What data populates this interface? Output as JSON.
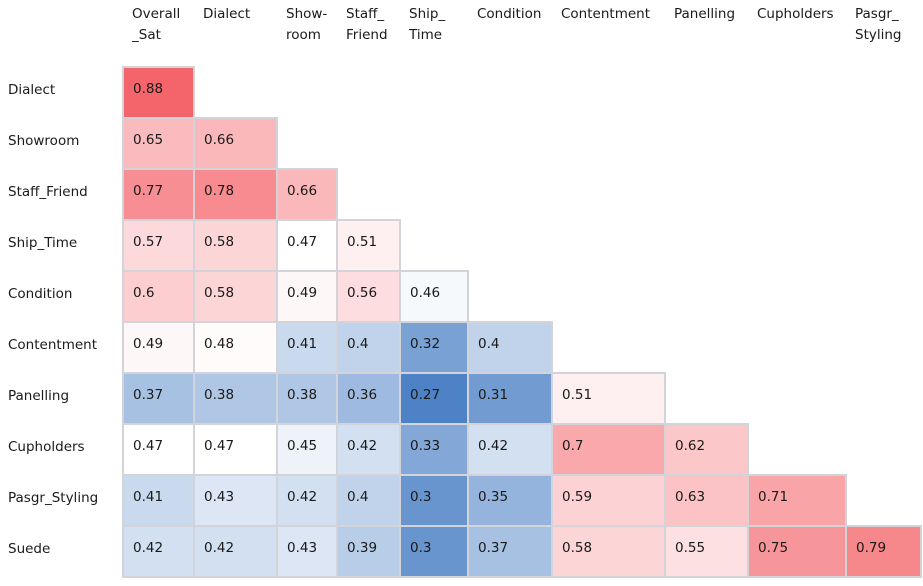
{
  "chart_data": {
    "type": "heatmap",
    "title": "",
    "shape": "lower-triangle",
    "legend": false,
    "col_labels": [
      "Overall_Sat",
      "Dialect",
      "Showroom",
      "Staff_Friend",
      "Ship_Time",
      "Condition",
      "Contentment",
      "Panelling",
      "Cupholders",
      "Pasgr_Styling"
    ],
    "col_header_lines": [
      [
        "Overall",
        "_Sat"
      ],
      [
        "Dialect"
      ],
      [
        "Show-",
        "room"
      ],
      [
        "Staff_",
        "Friend"
      ],
      [
        "Ship_",
        "Time"
      ],
      [
        "Condition"
      ],
      [
        "Contentment"
      ],
      [
        "Panelling"
      ],
      [
        "Cupholders"
      ],
      [
        "Pasgr_",
        "Styling"
      ]
    ],
    "row_labels": [
      "Dialect",
      "Showroom",
      "Staff_Friend",
      "Ship_Time",
      "Condition",
      "Contentment",
      "Panelling",
      "Cupholders",
      "Pasgr_Styling",
      "Suede"
    ],
    "values": [
      [
        0.88
      ],
      [
        0.65,
        0.66
      ],
      [
        0.77,
        0.78,
        0.66
      ],
      [
        0.57,
        0.58,
        0.47,
        0.51
      ],
      [
        0.6,
        0.58,
        0.49,
        0.56,
        0.46
      ],
      [
        0.49,
        0.48,
        0.41,
        0.4,
        0.32,
        0.4
      ],
      [
        0.37,
        0.38,
        0.38,
        0.36,
        0.27,
        0.31,
        0.51
      ],
      [
        0.47,
        0.47,
        0.45,
        0.42,
        0.33,
        0.42,
        0.7,
        0.62
      ],
      [
        0.41,
        0.43,
        0.42,
        0.4,
        0.3,
        0.35,
        0.59,
        0.63,
        0.71
      ],
      [
        0.42,
        0.42,
        0.43,
        0.39,
        0.3,
        0.37,
        0.58,
        0.55,
        0.75,
        0.79
      ]
    ],
    "colormap": {
      "type": "diverging",
      "min": 0.27,
      "mid": 0.47,
      "max": 0.88,
      "low_color": "#4e82c6",
      "mid_color": "#ffffff",
      "high_color": "#f4656b"
    },
    "grid_color": "#d2d4d9",
    "text_color": "#1a1a1a"
  }
}
